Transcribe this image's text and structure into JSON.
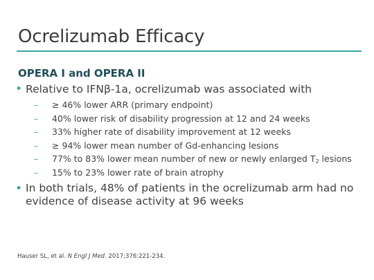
{
  "slide": {
    "title": "Ocrelizumab Efficacy",
    "subheading": "OPERA I and OPERA II",
    "bullet_1": "Relative to IFNβ-1a, ocrelizumab was associated with",
    "sub_bullets": [
      "≥ 46% lower ARR (primary endpoint)",
      "40% lower risk of disability progression at 12 and 24 weeks",
      "33% higher rate of disability improvement at 12 weeks",
      "≥ 94% lower mean number of Gd-enhancing lesions",
      "77% to 83% lower mean number of new or newly enlarged T",
      "15% to 23% lower rate of brain atrophy"
    ],
    "sub_bullet_5_subscript": "2",
    "sub_bullet_5_suffix": " lesions",
    "bullet_2": "In both trials, 48% of patients in the ocrelizumab arm had no evidence of disease activity at 96 weeks",
    "bullet_glyph": "•",
    "dash_glyph": "–",
    "accent_color": "#3aa6a6"
  },
  "footer": {
    "authors": "Hauser SL, et al. ",
    "journal": "N Engl J Med",
    "citation": ". 2017;376:221-234."
  }
}
